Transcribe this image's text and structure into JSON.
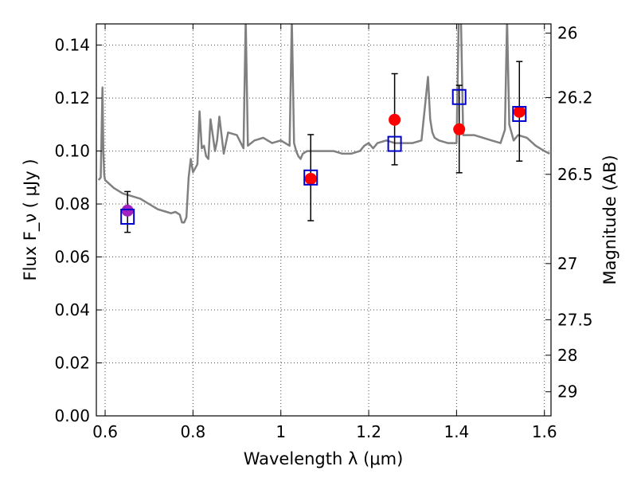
{
  "chart_data": {
    "type": "scatter",
    "title": "",
    "xlabel": "Wavelength  λ (μm)",
    "ylabel": "Flux  F_ν  ( μJy )",
    "ylabel_right": "Magnitude (AB)",
    "xlim": [
      0.58,
      1.615
    ],
    "ylim": [
      0.0,
      0.148
    ],
    "grid": true,
    "x_ticks": [
      0.6,
      0.8,
      1.0,
      1.2,
      1.4,
      1.6
    ],
    "x_tick_labels": [
      "0.6",
      "0.8",
      "1",
      "1.2",
      "1.4",
      "1.6"
    ],
    "y_ticks": [
      0.0,
      0.02,
      0.04,
      0.06,
      0.08,
      0.1,
      0.12,
      0.14
    ],
    "y_tick_labels": [
      "0.00",
      "0.02",
      "0.04",
      "0.06",
      "0.08",
      "0.10",
      "0.12",
      "0.14"
    ],
    "right_ticks": [
      {
        "label": "26",
        "flux": 0.1445
      },
      {
        "label": "26.2",
        "flux": 0.1202
      },
      {
        "label": "26.5",
        "flux": 0.0912
      },
      {
        "label": "27",
        "flux": 0.0575
      },
      {
        "label": "27.5",
        "flux": 0.0363
      },
      {
        "label": "28",
        "flux": 0.0229
      },
      {
        "label": "29",
        "flux": 0.0091
      }
    ],
    "series": [
      {
        "type": "line",
        "color": "#808080",
        "x": [
          0.585,
          0.59,
          0.594,
          0.596,
          0.598,
          0.6,
          0.62,
          0.64,
          0.66,
          0.68,
          0.7,
          0.72,
          0.74,
          0.75,
          0.76,
          0.77,
          0.775,
          0.78,
          0.785,
          0.79,
          0.795,
          0.8,
          0.81,
          0.815,
          0.82,
          0.825,
          0.83,
          0.835,
          0.84,
          0.845,
          0.85,
          0.855,
          0.86,
          0.87,
          0.88,
          0.9,
          0.915,
          0.92,
          0.925,
          0.94,
          0.96,
          0.98,
          1.0,
          1.02,
          1.025,
          1.03,
          1.035,
          1.04,
          1.045,
          1.05,
          1.06,
          1.08,
          1.1,
          1.12,
          1.14,
          1.16,
          1.18,
          1.19,
          1.2,
          1.21,
          1.22,
          1.24,
          1.26,
          1.28,
          1.3,
          1.32,
          1.33,
          1.335,
          1.34,
          1.345,
          1.35,
          1.36,
          1.38,
          1.4,
          1.405,
          1.41,
          1.415,
          1.42,
          1.44,
          1.46,
          1.48,
          1.5,
          1.51,
          1.515,
          1.52,
          1.53,
          1.54,
          1.56,
          1.58,
          1.6,
          1.612
        ],
        "y": [
          0.089,
          0.09,
          0.124,
          0.1,
          0.091,
          0.089,
          0.086,
          0.084,
          0.083,
          0.082,
          0.08,
          0.078,
          0.077,
          0.0765,
          0.077,
          0.076,
          0.073,
          0.073,
          0.075,
          0.09,
          0.097,
          0.092,
          0.095,
          0.115,
          0.101,
          0.102,
          0.098,
          0.097,
          0.112,
          0.106,
          0.1,
          0.104,
          0.113,
          0.099,
          0.107,
          0.106,
          0.101,
          0.15,
          0.102,
          0.104,
          0.105,
          0.103,
          0.104,
          0.102,
          0.15,
          0.103,
          0.1,
          0.098,
          0.097,
          0.099,
          0.1,
          0.1,
          0.1,
          0.1,
          0.099,
          0.099,
          0.1,
          0.102,
          0.103,
          0.101,
          0.103,
          0.104,
          0.103,
          0.103,
          0.103,
          0.104,
          0.12,
          0.128,
          0.112,
          0.107,
          0.105,
          0.104,
          0.103,
          0.103,
          0.15,
          0.15,
          0.106,
          0.106,
          0.106,
          0.105,
          0.104,
          0.103,
          0.108,
          0.15,
          0.11,
          0.104,
          0.106,
          0.105,
          0.102,
          0.1,
          0.099
        ]
      },
      {
        "type": "scatter",
        "marker": "circle",
        "color": "#ff0000",
        "x": [
          0.651,
          1.068,
          1.259,
          1.406,
          1.543
        ],
        "y": [
          0.0775,
          0.0895,
          0.1118,
          0.1082,
          0.1148
        ]
      },
      {
        "type": "scatter",
        "marker": "square-open",
        "color": "#0000cc",
        "x": [
          0.651,
          1.068,
          1.259,
          1.406,
          1.543
        ],
        "y": [
          0.0752,
          0.09,
          0.1027,
          0.1204,
          0.114
        ]
      }
    ],
    "error_bars": [
      {
        "x": 0.651,
        "y_low": 0.0693,
        "y_high": 0.0847
      },
      {
        "x": 1.068,
        "y_low": 0.0737,
        "y_high": 0.1062
      },
      {
        "x": 1.259,
        "y_low": 0.0948,
        "y_high": 0.1292
      },
      {
        "x": 1.406,
        "y_low": 0.0918,
        "y_high": 0.1248
      },
      {
        "x": 1.543,
        "y_low": 0.0962,
        "y_high": 0.1338
      }
    ]
  }
}
